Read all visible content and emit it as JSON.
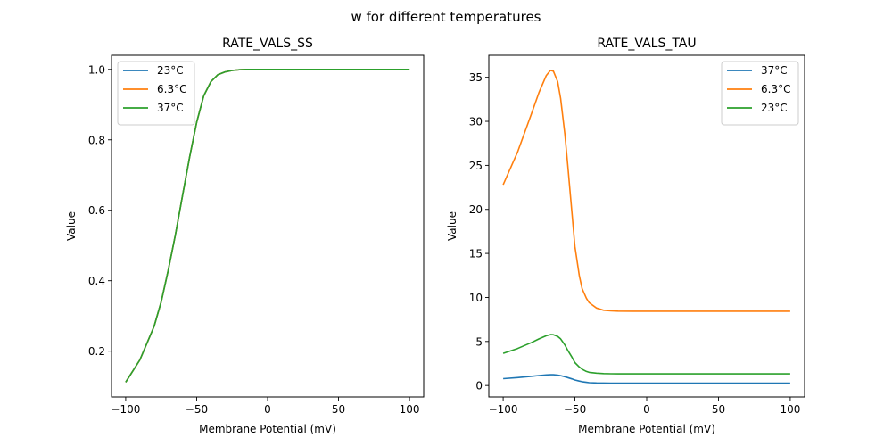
{
  "figure_title": "w for different temperatures",
  "chart_data": [
    {
      "type": "line",
      "title": "RATE_VALS_SS",
      "xlabel": "Membrane Potential (mV)",
      "ylabel": "Value",
      "xlim": [
        -110,
        110
      ],
      "ylim": [
        0.07,
        1.04
      ],
      "xticks": [
        -100,
        -50,
        0,
        50,
        100
      ],
      "xtick_labels": [
        "−100",
        "−50",
        "0",
        "50",
        "100"
      ],
      "yticks": [
        0.2,
        0.4,
        0.6,
        0.8,
        1.0
      ],
      "ytick_labels": [
        "0.2",
        "0.4",
        "0.6",
        "0.8",
        "1.0"
      ],
      "grid": false,
      "legend_position": "upper-left",
      "x": [
        -100,
        -90,
        -80,
        -75,
        -70,
        -65,
        -60,
        -55,
        -50,
        -45,
        -40,
        -35,
        -30,
        -25,
        -20,
        -15,
        -10,
        -5,
        0,
        20,
        50,
        100
      ],
      "series": [
        {
          "name": "23°C",
          "color": "#1f77b4",
          "values": [
            0.112,
            0.175,
            0.27,
            0.34,
            0.43,
            0.53,
            0.64,
            0.75,
            0.85,
            0.925,
            0.965,
            0.985,
            0.993,
            0.997,
            0.999,
            1.0,
            1.0,
            1.0,
            1.0,
            1.0,
            1.0,
            1.0
          ]
        },
        {
          "name": "6.3°C",
          "color": "#ff7f0e",
          "values": [
            0.112,
            0.175,
            0.27,
            0.34,
            0.43,
            0.53,
            0.64,
            0.75,
            0.85,
            0.925,
            0.965,
            0.985,
            0.993,
            0.997,
            0.999,
            1.0,
            1.0,
            1.0,
            1.0,
            1.0,
            1.0,
            1.0
          ]
        },
        {
          "name": "37°C",
          "color": "#2ca02c",
          "values": [
            0.112,
            0.175,
            0.27,
            0.34,
            0.43,
            0.53,
            0.64,
            0.75,
            0.85,
            0.925,
            0.965,
            0.985,
            0.993,
            0.997,
            0.999,
            1.0,
            1.0,
            1.0,
            1.0,
            1.0,
            1.0,
            1.0
          ]
        }
      ]
    },
    {
      "type": "line",
      "title": "RATE_VALS_TAU",
      "xlabel": "Membrane Potential (mV)",
      "ylabel": "Value",
      "xlim": [
        -110,
        110
      ],
      "ylim": [
        -1.3,
        37.5
      ],
      "xticks": [
        -100,
        -50,
        0,
        50,
        100
      ],
      "xtick_labels": [
        "−100",
        "−50",
        "0",
        "50",
        "100"
      ],
      "yticks": [
        0,
        5,
        10,
        15,
        20,
        25,
        30,
        35
      ],
      "ytick_labels": [
        "0",
        "5",
        "10",
        "15",
        "20",
        "25",
        "30",
        "35"
      ],
      "grid": false,
      "legend_position": "upper-right",
      "x": [
        -100,
        -90,
        -80,
        -75,
        -70,
        -67,
        -65,
        -62,
        -60,
        -57,
        -55,
        -52,
        -50,
        -47,
        -45,
        -42,
        -40,
        -35,
        -30,
        -25,
        -20,
        -10,
        0,
        50,
        100
      ],
      "series": [
        {
          "name": "37°C",
          "color": "#1f77b4",
          "values": [
            0.78,
            0.9,
            1.05,
            1.13,
            1.2,
            1.22,
            1.22,
            1.18,
            1.12,
            1.0,
            0.9,
            0.75,
            0.62,
            0.5,
            0.43,
            0.36,
            0.32,
            0.29,
            0.28,
            0.27,
            0.27,
            0.27,
            0.27,
            0.27,
            0.27
          ]
        },
        {
          "name": "6.3°C",
          "color": "#ff7f0e",
          "values": [
            22.8,
            26.5,
            31.0,
            33.3,
            35.2,
            35.8,
            35.7,
            34.5,
            32.6,
            28.5,
            25.0,
            19.5,
            15.8,
            12.5,
            11.0,
            9.9,
            9.4,
            8.8,
            8.55,
            8.48,
            8.45,
            8.44,
            8.44,
            8.44,
            8.44
          ]
        },
        {
          "name": "23°C",
          "color": "#2ca02c",
          "values": [
            3.65,
            4.2,
            4.9,
            5.3,
            5.65,
            5.78,
            5.77,
            5.58,
            5.3,
            4.6,
            4.0,
            3.2,
            2.6,
            2.1,
            1.85,
            1.6,
            1.5,
            1.4,
            1.35,
            1.33,
            1.32,
            1.32,
            1.32,
            1.32,
            1.32
          ]
        }
      ]
    }
  ]
}
